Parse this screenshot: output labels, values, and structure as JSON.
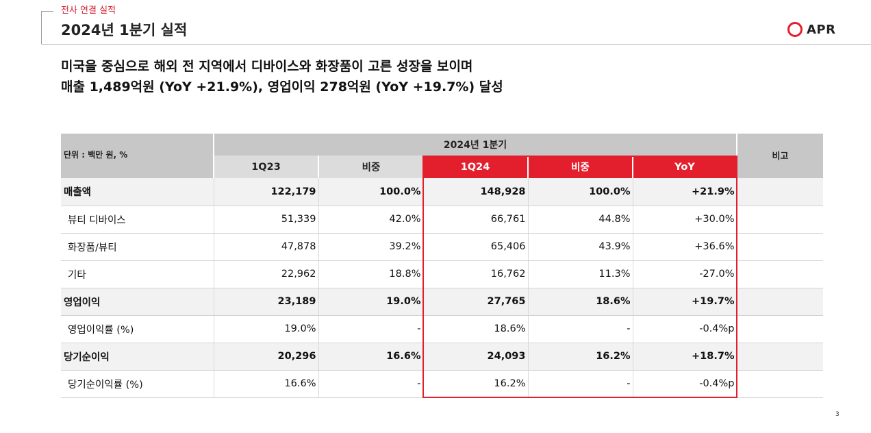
{
  "header": {
    "section_label": "전사 연결 실적",
    "title": "2024년 1분기 실적",
    "logo_text": "APR"
  },
  "headline": {
    "line1": "미국을 중심으로 해외 전 지역에서 디바이스와 화장품이 고른 성장을 보이며",
    "line2": "매출 1,489억원 (YoY +21.9%), 영업이익 278억원 (YoY +19.7%) 달성"
  },
  "table": {
    "unit_label": "단위 : 백만 원, %",
    "period_label": "2024년 1분기",
    "remark_label": "비고",
    "columns": [
      "1Q23",
      "비중",
      "1Q24",
      "비중",
      "YoY"
    ],
    "rows": [
      {
        "label": "매출액",
        "bold": true,
        "values": [
          "122,179",
          "100.0%",
          "148,928",
          "100.0%",
          "+21.9%"
        ]
      },
      {
        "label": "뷰티 디바이스",
        "bold": false,
        "values": [
          "51,339",
          "42.0%",
          "66,761",
          "44.8%",
          "+30.0%"
        ]
      },
      {
        "label": "화장품/뷰티",
        "bold": false,
        "values": [
          "47,878",
          "39.2%",
          "65,406",
          "43.9%",
          "+36.6%"
        ]
      },
      {
        "label": "기타",
        "bold": false,
        "values": [
          "22,962",
          "18.8%",
          "16,762",
          "11.3%",
          "-27.0%"
        ]
      },
      {
        "label": "영업이익",
        "bold": true,
        "values": [
          "23,189",
          "19.0%",
          "27,765",
          "18.6%",
          "+19.7%"
        ]
      },
      {
        "label": "영업이익률 (%)",
        "bold": false,
        "values": [
          "19.0%",
          "-",
          "18.6%",
          "-",
          "-0.4%p"
        ]
      },
      {
        "label": "당기순이익",
        "bold": true,
        "values": [
          "20,296",
          "16.6%",
          "24,093",
          "16.2%",
          "+18.7%"
        ]
      },
      {
        "label": "당기순이익률 (%)",
        "bold": false,
        "values": [
          "16.6%",
          "-",
          "16.2%",
          "-",
          "-0.4%p"
        ]
      }
    ]
  },
  "colors": {
    "accent_red": "#e41f2d",
    "header_gray": "#c7c7c7",
    "subheader_gray": "#dcdcdc",
    "bold_row_bg": "#f2f2f2"
  },
  "page_number": "3"
}
